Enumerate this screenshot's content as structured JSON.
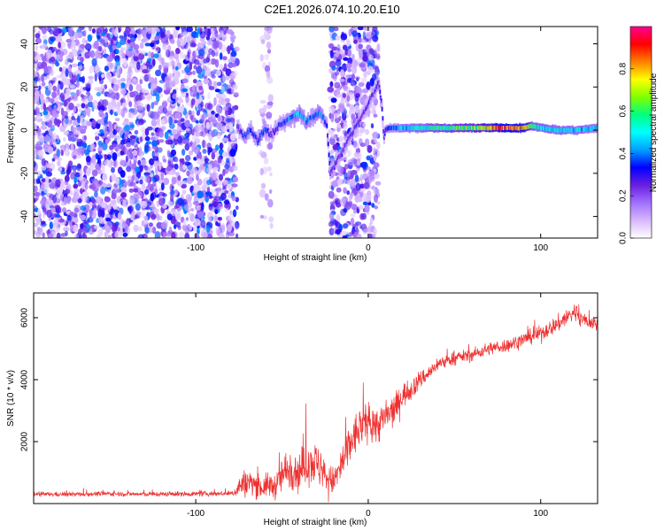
{
  "figure_title": "C2E1.2026.074.10.20.E10",
  "chart_data": [
    {
      "type": "heatmap",
      "title": "C2E1.2026.074.10.20.E10",
      "xlabel": "Height of straight line (km)",
      "ylabel": "Frequency (Hz)",
      "xlim": [
        -194,
        133
      ],
      "ylim": [
        -50,
        48
      ],
      "xticks": [
        -100,
        0,
        100
      ],
      "xtick_labels": [
        "-100",
        "0",
        "100"
      ],
      "yticks": [
        -40,
        -20,
        0,
        20,
        40
      ],
      "ytick_labels": [
        "-40",
        "-20",
        "0",
        "20",
        "40"
      ],
      "colorbar": {
        "label": "Normalized spectral amplitude",
        "range": [
          0,
          1
        ],
        "ticks": [
          0.0,
          0.2,
          0.4,
          0.6,
          0.8
        ],
        "tick_labels": [
          "0.0",
          "0.2",
          "0.4",
          "0.6",
          "0.8"
        ],
        "colors": [
          "#ffffff",
          "#d8b8ff",
          "#a070ff",
          "#6a1fe0",
          "#0000ff",
          "#00a0ff",
          "#00ffff",
          "#00ff80",
          "#80ff00",
          "#ffff00",
          "#ff8000",
          "#ff0000",
          "#ff0090"
        ]
      },
      "noise_regions": [
        {
          "x_start": -194,
          "x_end": -76,
          "amplitude": 0.3
        },
        {
          "x_start": -62,
          "x_end": -56,
          "amplitude": 0.12
        },
        {
          "x_start": -22,
          "x_end": 6,
          "amplitude": 0.28
        }
      ],
      "signal_track": {
        "x": [
          -76,
          -72,
          -68,
          -64,
          -60,
          -56,
          -52,
          -48,
          -44,
          -40,
          -36,
          -32,
          -28,
          -26,
          -24,
          -22,
          4,
          6,
          8,
          9,
          10,
          12,
          20,
          40,
          60,
          70,
          80,
          90,
          95,
          100,
          110,
          120,
          133
        ],
        "frequency": [
          2,
          -3,
          0,
          -5,
          0,
          -2,
          2,
          4,
          6,
          8,
          4,
          6,
          8,
          6,
          2,
          -20,
          18,
          22,
          10,
          -4,
          0,
          1,
          1,
          1,
          1,
          1,
          1,
          1,
          2,
          1,
          0,
          0,
          1
        ],
        "amplitude": [
          0.3,
          0.35,
          0.4,
          0.35,
          0.4,
          0.3,
          0.35,
          0.4,
          0.45,
          0.5,
          0.45,
          0.42,
          0.5,
          0.4,
          0.35,
          0.3,
          0.3,
          0.35,
          0.3,
          0.3,
          0.35,
          0.4,
          0.5,
          0.62,
          0.72,
          0.82,
          0.96,
          0.92,
          0.6,
          0.55,
          0.55,
          0.52,
          0.5
        ]
      }
    },
    {
      "type": "line",
      "xlabel": "Height of straight line (km)",
      "ylabel": "SNR (10 * v/v)",
      "xlim": [
        -194,
        133
      ],
      "ylim": [
        0,
        6800
      ],
      "xticks": [
        -100,
        0,
        100
      ],
      "xtick_labels": [
        "-100",
        "0",
        "100"
      ],
      "yticks": [
        2000,
        4000,
        6000
      ],
      "ytick_labels": [
        "2000",
        "4000",
        "6000"
      ],
      "color": "#ee3030",
      "series": [
        {
          "name": "SNR",
          "x": [
            -194,
            -170,
            -150,
            -130,
            -110,
            -90,
            -78,
            -74,
            -70,
            -66,
            -62,
            -58,
            -54,
            -50,
            -45,
            -40,
            -35,
            -30,
            -25,
            -20,
            -15,
            -10,
            -5,
            0,
            5,
            10,
            15,
            20,
            25,
            30,
            35,
            40,
            45,
            50,
            60,
            70,
            80,
            90,
            100,
            110,
            115,
            120,
            125,
            133
          ],
          "y": [
            300,
            300,
            320,
            300,
            310,
            320,
            330,
            600,
            700,
            650,
            500,
            600,
            550,
            900,
            1200,
            1000,
            1400,
            1300,
            900,
            700,
            1300,
            2000,
            2400,
            2700,
            2500,
            2800,
            3000,
            3500,
            3700,
            4000,
            4200,
            4500,
            4600,
            4700,
            4800,
            5000,
            5100,
            5300,
            5500,
            5800,
            6000,
            6200,
            5900,
            5800
          ],
          "noise": [
            150,
            150,
            150,
            150,
            150,
            160,
            170,
            800,
            900,
            800,
            700,
            800,
            800,
            1200,
            1400,
            1300,
            1500,
            1400,
            1000,
            900,
            1400,
            1400,
            1300,
            1200,
            1200,
            1200,
            1000,
            800,
            700,
            600,
            500,
            450,
            450,
            400,
            400,
            420,
            450,
            450,
            500,
            550,
            600,
            650,
            500,
            450
          ]
        }
      ]
    }
  ]
}
